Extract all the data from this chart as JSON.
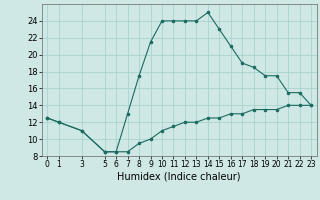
{
  "xlabel": "Humidex (Indice chaleur)",
  "background_color": "#cfe8e5",
  "grid_color": "#a8d4d0",
  "line_color": "#1a6b60",
  "x_upper": [
    0,
    1,
    3,
    5,
    6,
    7,
    8,
    9,
    10,
    11,
    12,
    13,
    14,
    15,
    16,
    17,
    18,
    19,
    20,
    21,
    22,
    23
  ],
  "y_upper": [
    12.5,
    12.0,
    11.0,
    8.5,
    8.5,
    13.0,
    17.5,
    21.5,
    24.0,
    24.0,
    24.0,
    24.0,
    25.0,
    23.0,
    21.0,
    19.0,
    18.5,
    17.5,
    17.5,
    15.5,
    15.5,
    14.0
  ],
  "x_lower": [
    0,
    1,
    3,
    5,
    6,
    7,
    8,
    9,
    10,
    11,
    12,
    13,
    14,
    15,
    16,
    17,
    18,
    19,
    20,
    21,
    22,
    23
  ],
  "y_lower": [
    12.5,
    12.0,
    11.0,
    8.5,
    8.5,
    8.5,
    9.5,
    10.0,
    11.0,
    11.5,
    12.0,
    12.0,
    12.5,
    12.5,
    13.0,
    13.0,
    13.5,
    13.5,
    13.5,
    14.0,
    14.0,
    14.0
  ],
  "ylim": [
    8,
    26
  ],
  "yticks": [
    8,
    10,
    12,
    14,
    16,
    18,
    20,
    22,
    24
  ],
  "xlim": [
    -0.5,
    23.5
  ],
  "xtick_positions": [
    0,
    1,
    3,
    5,
    6,
    7,
    8,
    9,
    10,
    11,
    12,
    13,
    14,
    15,
    16,
    17,
    18,
    19,
    20,
    21,
    22,
    23
  ],
  "xtick_labels": [
    "0",
    "1",
    "3",
    "5",
    "6",
    "7",
    "8",
    "9",
    "10",
    "11",
    "12",
    "13",
    "14",
    "15",
    "16",
    "17",
    "18",
    "19",
    "20",
    "21",
    "22",
    "23"
  ],
  "figsize": [
    3.2,
    2.0
  ],
  "dpi": 100
}
